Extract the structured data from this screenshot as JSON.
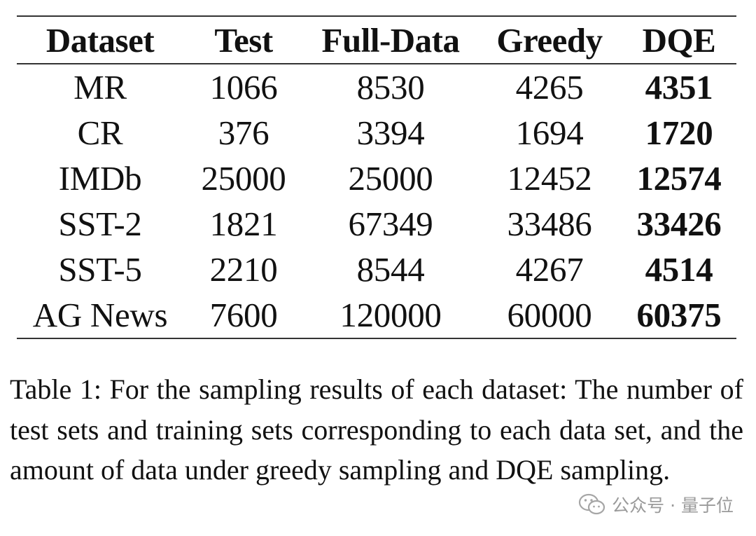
{
  "table": {
    "headers": [
      "Dataset",
      "Test",
      "Full-Data",
      "Greedy",
      "DQE"
    ],
    "rows": [
      {
        "dataset": "MR",
        "test": "1066",
        "full": "8530",
        "greedy": "4265",
        "dqe": "4351"
      },
      {
        "dataset": "CR",
        "test": "376",
        "full": "3394",
        "greedy": "1694",
        "dqe": "1720"
      },
      {
        "dataset": "IMDb",
        "test": "25000",
        "full": "25000",
        "greedy": "12452",
        "dqe": "12574"
      },
      {
        "dataset": "SST-2",
        "test": "1821",
        "full": "67349",
        "greedy": "33486",
        "dqe": "33426"
      },
      {
        "dataset": "SST-5",
        "test": "2210",
        "full": "8544",
        "greedy": "4267",
        "dqe": "4514"
      },
      {
        "dataset": "AG News",
        "test": "7600",
        "full": "120000",
        "greedy": "60000",
        "dqe": "60375"
      }
    ]
  },
  "caption": "Table 1:  For the sampling results of each dataset: The number of test sets and training sets corresponding to each data set, and the amount of data under greedy sampling and DQE sampling.",
  "watermark": {
    "icon": "wechat-icon",
    "text": "公众号 · 量子位"
  }
}
